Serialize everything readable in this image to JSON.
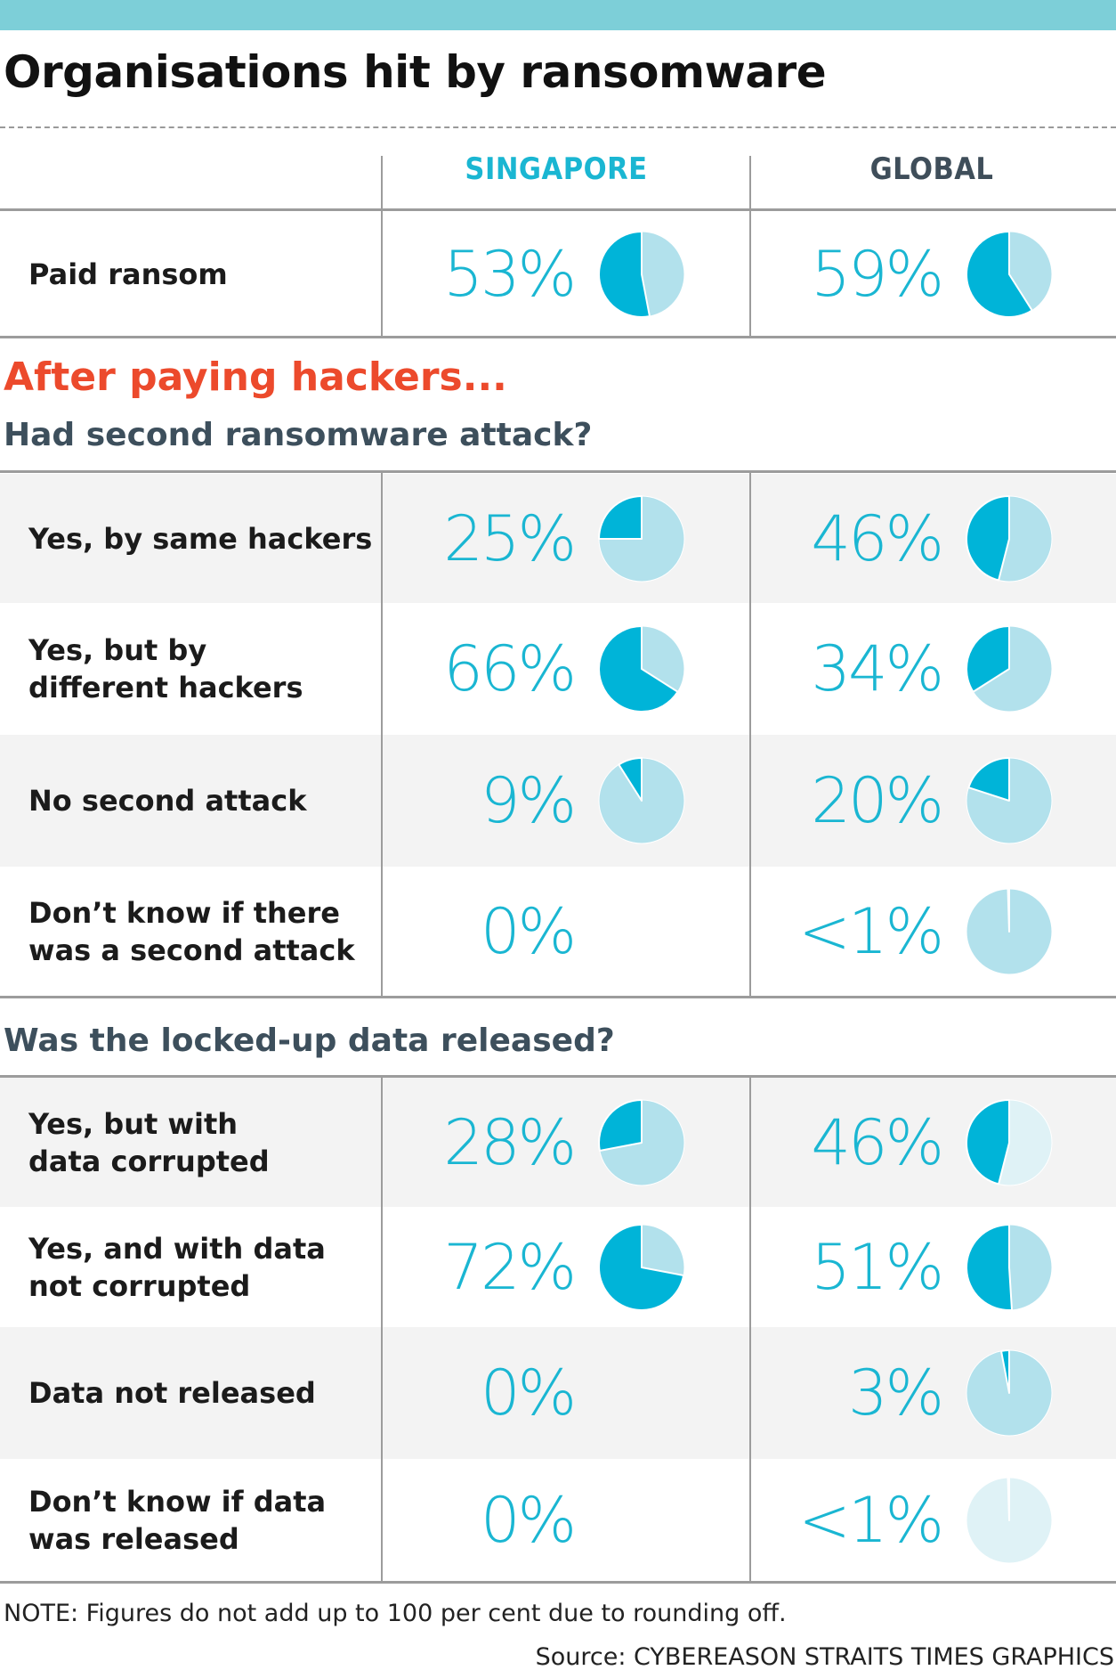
{
  "title": "Organisations hit by ransomware",
  "columns": {
    "singapore": "SINGAPORE",
    "global": "GLOBAL"
  },
  "section_after": "After paying hackers...",
  "section1_title": "Had second ransomware attack?",
  "section2_title": "Was the locked-up data released?",
  "note": "NOTE: Figures do not add up to 100 per cent due to rounding off.",
  "source": "Source: CYBEREASON   STRAITS TIMES GRAPHICS",
  "colors": {
    "accent": "#1ab6d2",
    "pie_fill": "#00b4d8",
    "pie_light": "#b2e1ec",
    "pie_faint": "#dff2f6",
    "red_heading": "#ec4a2c",
    "dark_heading": "#3d4f5c",
    "top_bar": "#7dcfd8"
  },
  "chart_data": {
    "type": "pie",
    "title": "Organisations hit by ransomware",
    "series_names": [
      "SINGAPORE",
      "GLOBAL"
    ],
    "rows": [
      {
        "label": "Paid ransom",
        "singapore": {
          "text": "53%",
          "value": 53
        },
        "global": {
          "text": "59%",
          "value": 59
        }
      },
      {
        "label": "Yes, by same hackers",
        "singapore": {
          "text": "25%",
          "value": 25
        },
        "global": {
          "text": "46%",
          "value": 46
        }
      },
      {
        "label": "Yes, but by different hackers",
        "singapore": {
          "text": "66%",
          "value": 66
        },
        "global": {
          "text": "34%",
          "value": 34
        }
      },
      {
        "label": "No second attack",
        "singapore": {
          "text": "9%",
          "value": 9
        },
        "global": {
          "text": "20%",
          "value": 20
        }
      },
      {
        "label": "Don’t know if there was a second attack",
        "singapore": {
          "text": "0%",
          "value": 0
        },
        "global": {
          "text": "<1%",
          "value": 0.5
        }
      },
      {
        "label": "Yes, but with data corrupted",
        "singapore": {
          "text": "28%",
          "value": 28
        },
        "global": {
          "text": "46%",
          "value": 46
        }
      },
      {
        "label": "Yes, and with data not corrupted",
        "singapore": {
          "text": "72%",
          "value": 72
        },
        "global": {
          "text": "51%",
          "value": 51
        }
      },
      {
        "label": "Data not released",
        "singapore": {
          "text": "0%",
          "value": 0
        },
        "global": {
          "text": "3%",
          "value": 3
        }
      },
      {
        "label": "Don’t know if data was released",
        "singapore": {
          "text": "0%",
          "value": 0
        },
        "global": {
          "text": "<1%",
          "value": 0.5
        }
      }
    ]
  }
}
